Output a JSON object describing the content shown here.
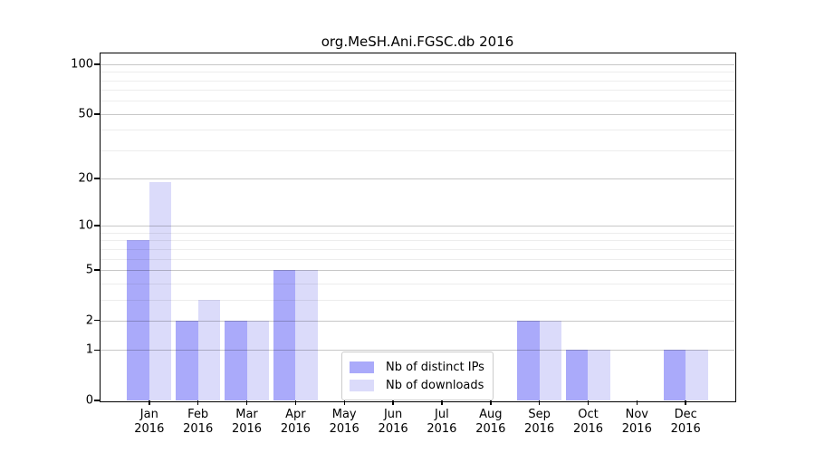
{
  "figure": {
    "background": "#ffffff",
    "axis_color": "#000000",
    "major_grid_color": "rgba(0,0,0,0.22)",
    "minor_grid_color": "rgba(0,0,0,0.07)"
  },
  "chart_data": {
    "type": "bar",
    "title": "org.MeSH.Ani.FGSC.db 2016",
    "categories": [
      "Jan 2016",
      "Feb 2016",
      "Mar 2016",
      "Apr 2016",
      "May 2016",
      "Jun 2016",
      "Jul 2016",
      "Aug 2016",
      "Sep 2016",
      "Oct 2016",
      "Nov 2016",
      "Dec 2016"
    ],
    "series": [
      {
        "name": "Nb of distinct IPs",
        "color": "#aaaafa",
        "values": [
          8,
          2,
          2,
          5,
          0,
          0,
          0,
          0,
          2,
          1,
          0,
          1
        ]
      },
      {
        "name": "Nb of downloads",
        "color": "#dbdbfa",
        "values": [
          19,
          3,
          2,
          5,
          0,
          0,
          0,
          0,
          2,
          1,
          0,
          1
        ]
      }
    ],
    "xlabel": "",
    "ylabel": "",
    "yscale": "log1p",
    "ylim": [
      0,
      116
    ],
    "yticks": [
      0,
      1,
      2,
      5,
      10,
      20,
      50,
      100
    ],
    "ytick_labels": [
      "0",
      "1",
      "2",
      "5",
      "10",
      "20",
      "50",
      "100"
    ],
    "minor_gridlines": [
      3,
      4,
      6,
      7,
      8,
      9,
      30,
      40,
      60,
      70,
      80,
      90
    ],
    "grid": "horizontal, drawn over bars",
    "legend_position": "bottom-center"
  }
}
